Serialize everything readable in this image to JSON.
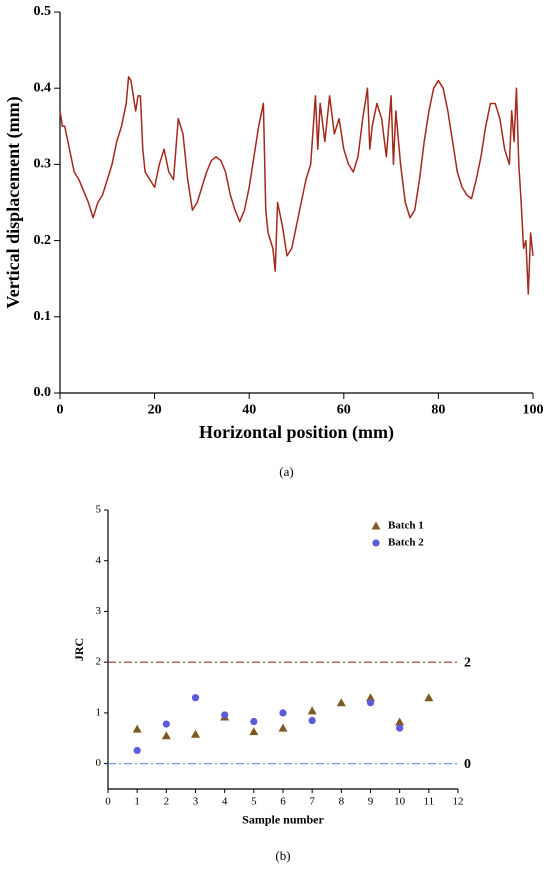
{
  "chart_data": [
    {
      "type": "line",
      "xlabel": "Horizontal position (mm)",
      "ylabel": "Vertical displacement (mm)",
      "caption": "(a)",
      "xlim": [
        0,
        100
      ],
      "xticks": [
        0,
        20,
        40,
        60,
        80,
        100
      ],
      "ylim": [
        0,
        0.5
      ],
      "yticks": [
        {
          "value": 0,
          "label": "0.0"
        },
        0.1,
        0.2,
        0.3,
        0.4,
        0.5
      ],
      "x": [
        0,
        0.5,
        1,
        2,
        3,
        4,
        5,
        6,
        7,
        8,
        9,
        10,
        11,
        12,
        13,
        14,
        14.5,
        15,
        16,
        16.5,
        17,
        17.5,
        18,
        19,
        20,
        21,
        22,
        23,
        24,
        25,
        26,
        27,
        28,
        29,
        30,
        31,
        32,
        33,
        34,
        35,
        36,
        37,
        38,
        39,
        40,
        41,
        42,
        43,
        43.5,
        44,
        45,
        45.5,
        46,
        47,
        48,
        49,
        50,
        51,
        52,
        53,
        54,
        54.5,
        55,
        56,
        57,
        58,
        59,
        60,
        61,
        62,
        63,
        64,
        65,
        65.5,
        66,
        67,
        68,
        69,
        70,
        70.5,
        71,
        72,
        73,
        74,
        75,
        76,
        77,
        78,
        79,
        80,
        81,
        82,
        83,
        84,
        85,
        86,
        87,
        88,
        89,
        90,
        91,
        92,
        93,
        94,
        95,
        95.5,
        96,
        96.5,
        97,
        97.5,
        98,
        98.5,
        99,
        99.5,
        100
      ],
      "series": [
        {
          "color": "#a3291c",
          "values": [
            0.37,
            0.35,
            0.35,
            0.32,
            0.29,
            0.28,
            0.265,
            0.25,
            0.23,
            0.25,
            0.26,
            0.28,
            0.3,
            0.33,
            0.35,
            0.38,
            0.415,
            0.41,
            0.37,
            0.39,
            0.39,
            0.32,
            0.29,
            0.28,
            0.27,
            0.3,
            0.32,
            0.29,
            0.28,
            0.36,
            0.34,
            0.28,
            0.24,
            0.25,
            0.27,
            0.29,
            0.305,
            0.31,
            0.305,
            0.29,
            0.26,
            0.24,
            0.225,
            0.24,
            0.27,
            0.31,
            0.35,
            0.38,
            0.24,
            0.21,
            0.19,
            0.16,
            0.25,
            0.22,
            0.18,
            0.19,
            0.22,
            0.25,
            0.28,
            0.3,
            0.39,
            0.32,
            0.38,
            0.33,
            0.39,
            0.34,
            0.36,
            0.32,
            0.3,
            0.29,
            0.31,
            0.36,
            0.4,
            0.32,
            0.35,
            0.38,
            0.36,
            0.31,
            0.39,
            0.3,
            0.37,
            0.3,
            0.25,
            0.23,
            0.24,
            0.28,
            0.33,
            0.37,
            0.4,
            0.41,
            0.4,
            0.37,
            0.33,
            0.29,
            0.27,
            0.26,
            0.255,
            0.28,
            0.31,
            0.35,
            0.38,
            0.38,
            0.36,
            0.32,
            0.3,
            0.37,
            0.33,
            0.4,
            0.3,
            0.25,
            0.19,
            0.2,
            0.13,
            0.21,
            0.18
          ]
        }
      ]
    },
    {
      "type": "scatter",
      "xlabel": "Sample number",
      "ylabel": "JRC",
      "caption": "(b)",
      "xlim": [
        0,
        12
      ],
      "xticks": [
        0,
        1,
        2,
        3,
        4,
        5,
        6,
        7,
        8,
        9,
        10,
        11,
        12
      ],
      "ylim": [
        -0.5,
        5
      ],
      "yticks": [
        0,
        1,
        2,
        3,
        4,
        5
      ],
      "legend": "upper right",
      "reference_lines": [
        {
          "value": 2,
          "color": "#8b3a26"
        },
        {
          "value": 0,
          "color": "#6f9fd8"
        }
      ],
      "series": [
        {
          "name": "Batch 1",
          "color": "#7d5a24",
          "marker": "triangle",
          "x": [
            1,
            2,
            3,
            4,
            5,
            6,
            7,
            8,
            9,
            10,
            11
          ],
          "values": [
            0.68,
            0.55,
            0.58,
            0.92,
            0.63,
            0.7,
            1.04,
            1.2,
            1.3,
            0.82,
            1.3
          ]
        },
        {
          "name": "Batch 2",
          "color": "#5b5bdc",
          "marker": "circle",
          "x": [
            1,
            2,
            3,
            4,
            5,
            6,
            7,
            9,
            10
          ],
          "values": [
            0.26,
            0.78,
            1.3,
            0.96,
            0.83,
            1.0,
            0.85,
            1.2,
            0.7
          ]
        }
      ]
    }
  ]
}
